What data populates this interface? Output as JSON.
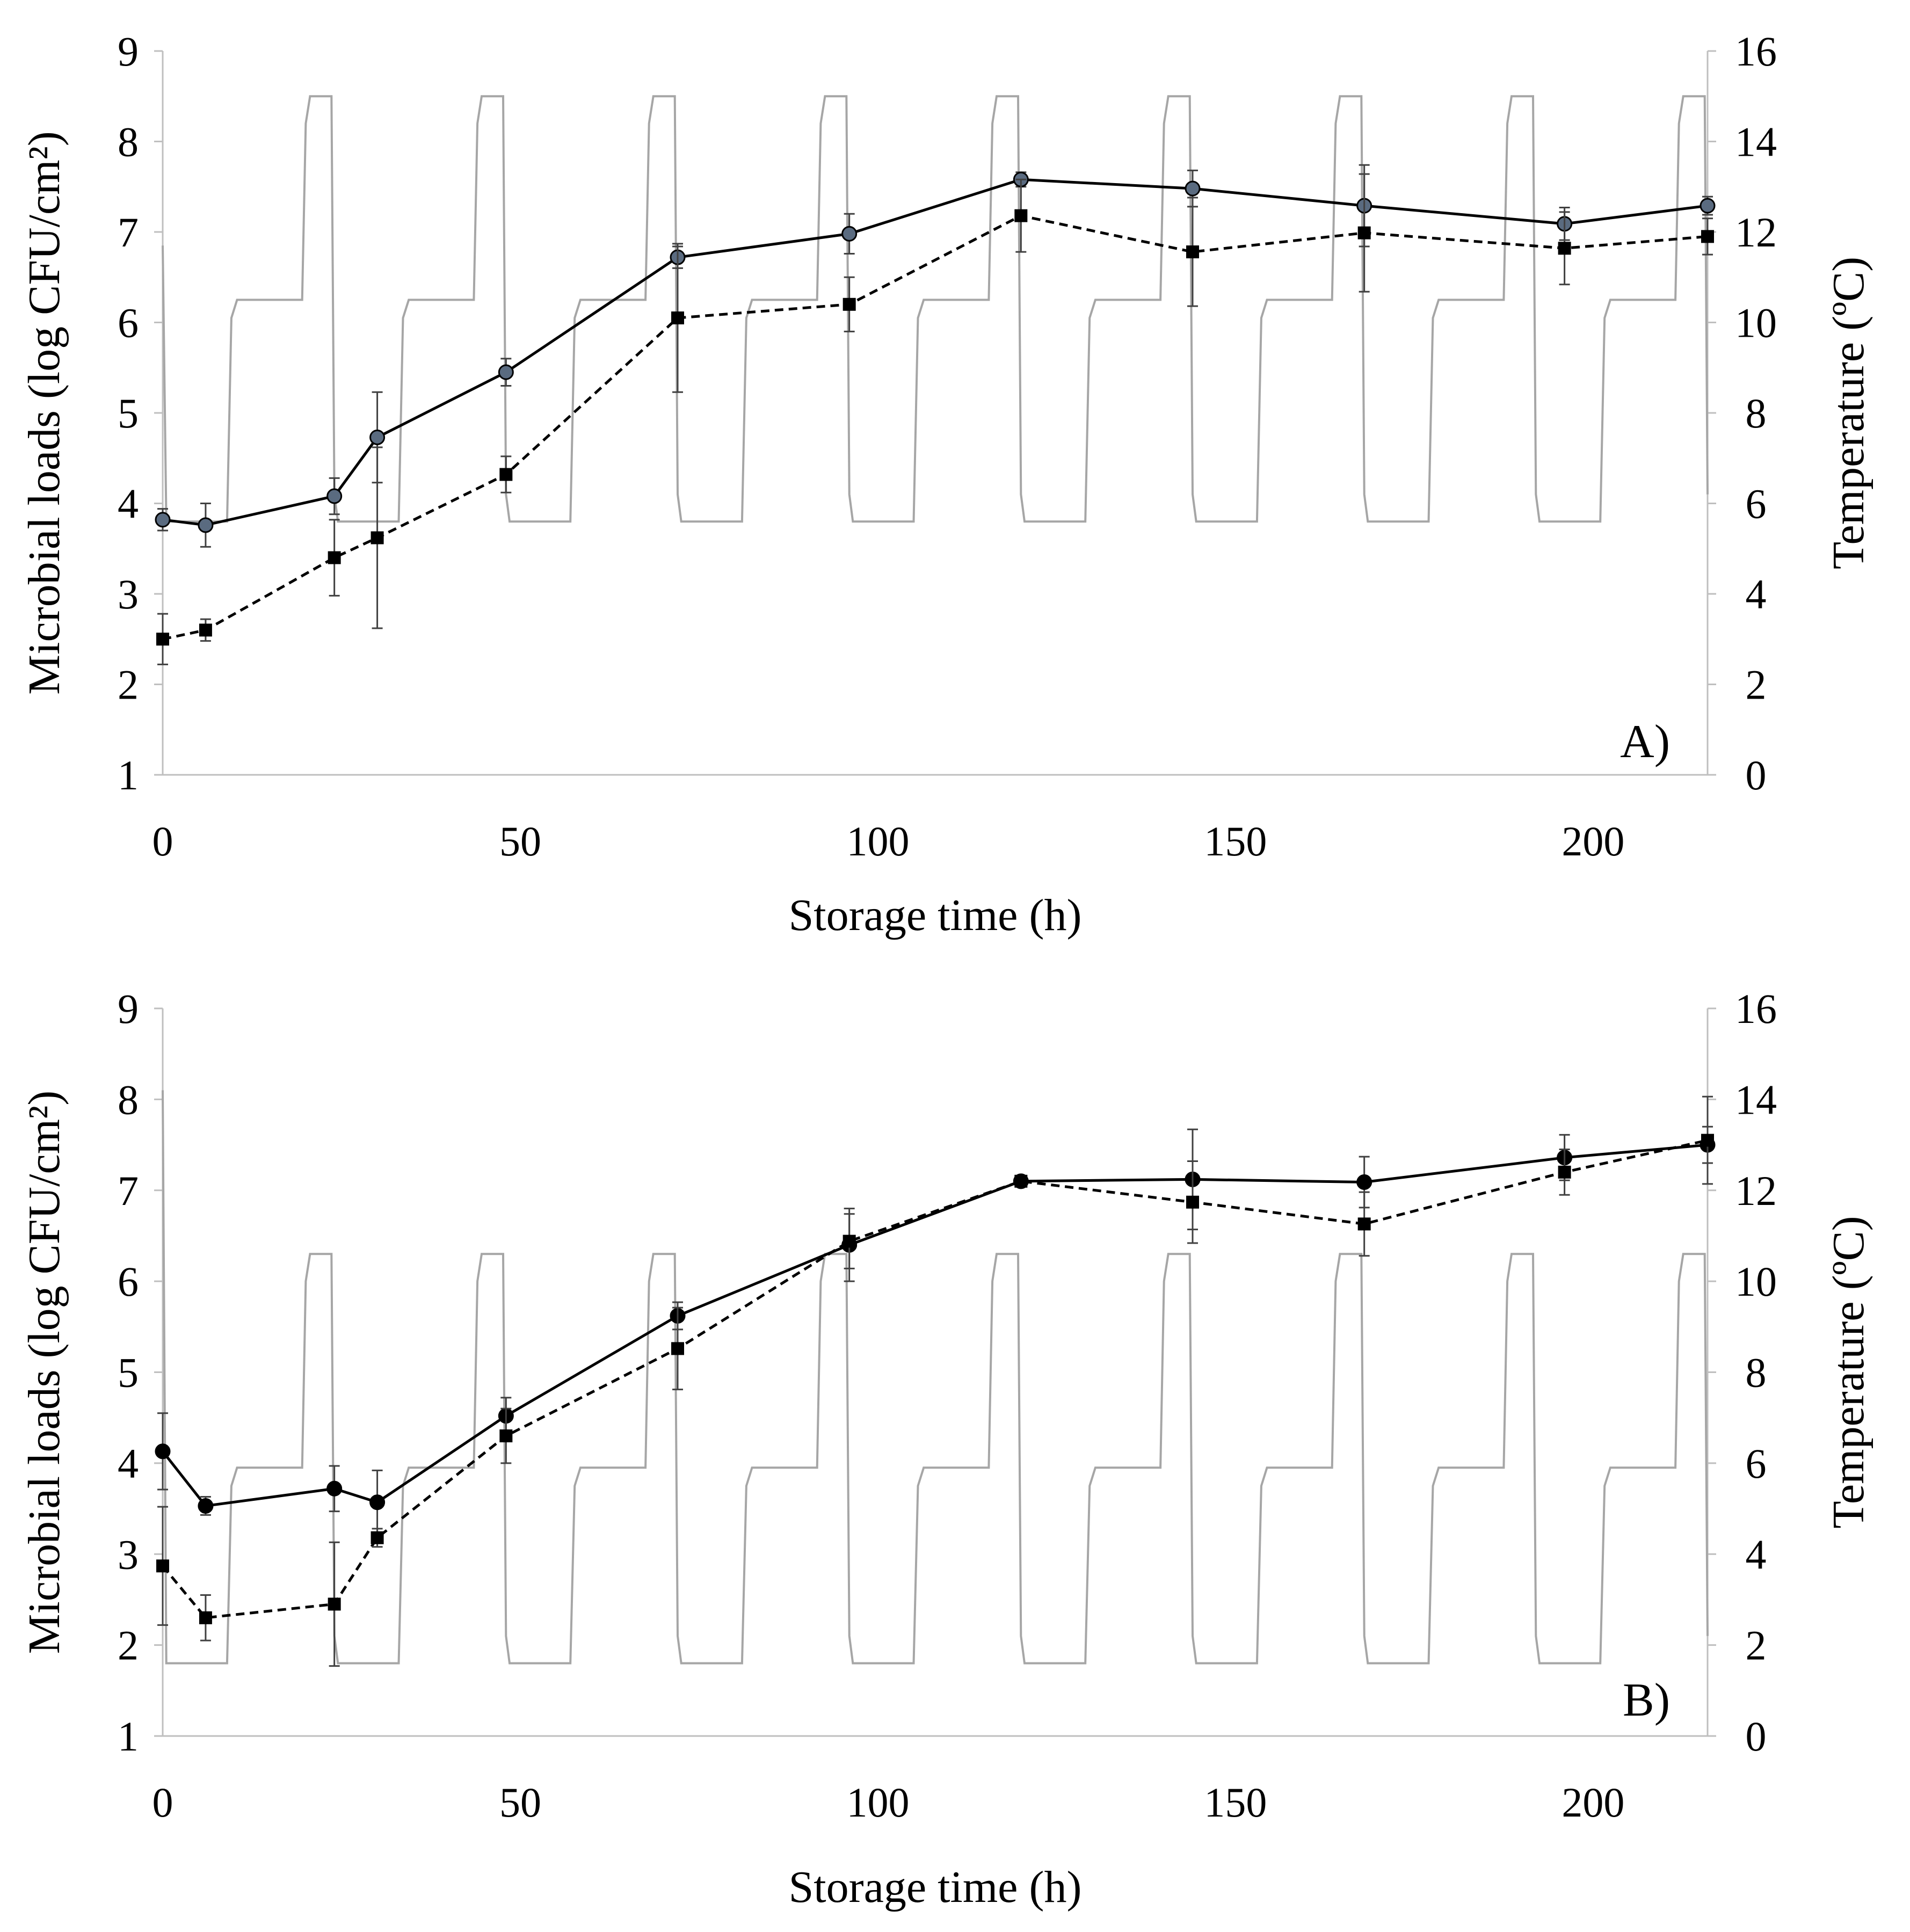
{
  "figure": {
    "shared_xlabel": "Storage time (h)"
  },
  "chart_data": [
    {
      "type": "line",
      "panel_label": "A)",
      "xlabel": "Storage time (h)",
      "ylabel_left": "Microbial loads (log CFU/cm²)",
      "ylabel_right": "Temperature (ºC)",
      "xlim": [
        0,
        216
      ],
      "ylim_left": [
        1,
        9
      ],
      "ylim_right": [
        0,
        16
      ],
      "x_ticks": [
        "0",
        "50",
        "100",
        "150",
        "200"
      ],
      "x_tick_values": [
        0,
        50,
        100,
        150,
        200
      ],
      "y_left_ticks": [
        "1",
        "2",
        "3",
        "4",
        "5",
        "6",
        "7",
        "8",
        "9"
      ],
      "y_left_tick_values": [
        1,
        2,
        3,
        4,
        5,
        6,
        7,
        8,
        9
      ],
      "y_right_ticks": [
        "0",
        "2",
        "4",
        "6",
        "8",
        "10",
        "12",
        "14",
        "16"
      ],
      "y_right_tick_values": [
        0,
        2,
        4,
        6,
        8,
        10,
        12,
        14,
        16
      ],
      "series": [
        {
          "name": "series-solid",
          "style": "solid",
          "marker": "circle",
          "x": [
            0,
            6,
            24,
            30,
            48,
            72,
            96,
            120,
            144,
            168,
            196,
            216
          ],
          "values": [
            3.82,
            3.76,
            4.08,
            4.73,
            5.45,
            6.72,
            6.98,
            7.58,
            7.48,
            7.29,
            7.09,
            7.29
          ],
          "errors": [
            0.12,
            0.24,
            0.2,
            0.5,
            0.15,
            0.12,
            0.22,
            0.08,
            0.2,
            0.45,
            0.18,
            0.1
          ]
        },
        {
          "name": "series-dashed",
          "style": "dashed",
          "marker": "square",
          "x": [
            0,
            6,
            24,
            30,
            48,
            72,
            96,
            120,
            144,
            168,
            196,
            216
          ],
          "values": [
            2.5,
            2.6,
            3.4,
            3.62,
            4.32,
            6.05,
            6.2,
            7.18,
            6.78,
            6.99,
            6.82,
            6.95
          ],
          "errors": [
            0.28,
            0.12,
            0.42,
            1.0,
            0.2,
            0.82,
            0.3,
            0.4,
            0.6,
            0.65,
            0.4,
            0.2
          ]
        }
      ],
      "temperature": {
        "name": "temperature-profile",
        "color": "#a6a6a6",
        "low": 5.6,
        "mid": 10.5,
        "high": 15.0,
        "spike_start": 11.7
      }
    },
    {
      "type": "line",
      "panel_label": "B)",
      "xlabel": "Storage time (h)",
      "ylabel_left": "Microbial loads (log CFU/cm²)",
      "ylabel_right": "Temperature (ºC)",
      "xlim": [
        0,
        216
      ],
      "ylim_left": [
        1,
        9
      ],
      "ylim_right": [
        0,
        16
      ],
      "x_ticks": [
        "0",
        "50",
        "100",
        "150",
        "200"
      ],
      "x_tick_values": [
        0,
        50,
        100,
        150,
        200
      ],
      "y_left_ticks": [
        "1",
        "2",
        "3",
        "4",
        "5",
        "6",
        "7",
        "8",
        "9"
      ],
      "y_left_tick_values": [
        1,
        2,
        3,
        4,
        5,
        6,
        7,
        8,
        9
      ],
      "y_right_ticks": [
        "0",
        "2",
        "4",
        "6",
        "8",
        "10",
        "12",
        "14",
        "16"
      ],
      "y_right_tick_values": [
        0,
        2,
        4,
        6,
        8,
        10,
        12,
        14,
        16
      ],
      "series": [
        {
          "name": "series-solid",
          "style": "solid",
          "marker": "circle",
          "x": [
            0,
            6,
            24,
            30,
            48,
            72,
            96,
            120,
            144,
            168,
            196,
            216
          ],
          "values": [
            4.13,
            3.53,
            3.72,
            3.57,
            4.52,
            5.62,
            6.4,
            7.1,
            7.12,
            7.09,
            7.36,
            7.5
          ],
          "errors": [
            0.42,
            0.1,
            0.25,
            0.35,
            0.2,
            0.15,
            0.4,
            0.03,
            0.55,
            0.28,
            0.25,
            0.2
          ]
        },
        {
          "name": "series-dashed",
          "style": "dashed",
          "marker": "square",
          "x": [
            0,
            6,
            24,
            30,
            48,
            72,
            96,
            120,
            144,
            168,
            196,
            216
          ],
          "values": [
            2.87,
            2.3,
            2.45,
            3.18,
            4.3,
            5.26,
            6.44,
            7.1,
            6.87,
            6.63,
            7.2,
            7.55
          ],
          "errors": [
            0.65,
            0.25,
            0.68,
            0.1,
            0.3,
            0.45,
            0.3,
            0.03,
            0.45,
            0.35,
            0.25,
            0.48
          ]
        }
      ],
      "temperature": {
        "name": "temperature-profile",
        "color": "#a6a6a6",
        "low": 1.6,
        "mid": 5.9,
        "high": 10.6,
        "spike_start": 14.2
      }
    }
  ]
}
